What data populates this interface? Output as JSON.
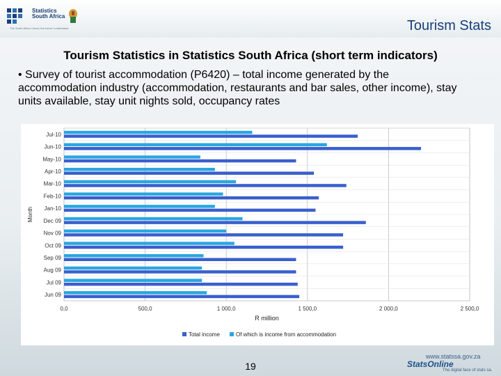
{
  "header": {
    "org_name_line1": "Statistics",
    "org_name_line2": "South Africa",
    "org_tagline": "The South Africa I know, the home I understand",
    "title": "Tourism Stats"
  },
  "slide": {
    "title": "Tourism Statistics in Statistics South Africa (short term indicators)",
    "bullet": "• Survey of tourist accommodation (P6420) – total income generated by the accommodation industry (accommodation, restaurants and bar sales, other income), stay units available, stay unit nights sold, occupancy rates"
  },
  "footer": {
    "page_number": "19",
    "url": "www.statssa.gov.za",
    "brand": "StatsOnline",
    "brand_tagline": "The digital face of stats sa."
  },
  "colors": {
    "total_income": "#3a5fcd",
    "accommodation_income": "#2aa7e0",
    "header_title": "#173e7a"
  },
  "chart_data": {
    "type": "bar",
    "orientation": "horizontal",
    "categories": [
      "Jul-10",
      "Jun-10",
      "May-10",
      "Apr-10",
      "Mar-10",
      "Feb-10",
      "Jan-10",
      "Dec 09",
      "Nov 09",
      "Oct 09",
      "Sep 09",
      "Aug 09",
      "Jul 09",
      "Jun 09"
    ],
    "series": [
      {
        "name": "Total income",
        "values": [
          1810,
          2200,
          1430,
          1540,
          1740,
          1570,
          1550,
          1860,
          1720,
          1720,
          1430,
          1430,
          1440,
          1450
        ]
      },
      {
        "name": "Of which is income from accommodation",
        "values": [
          1160,
          1620,
          840,
          930,
          1060,
          980,
          930,
          1100,
          1000,
          1050,
          860,
          850,
          850,
          880
        ]
      }
    ],
    "xlabel": "R million",
    "ylabel": "Month",
    "xlim": [
      0,
      2500
    ],
    "xticks": [
      0,
      500,
      1000,
      1500,
      2000,
      2500
    ],
    "xtick_labels": [
      "0,0",
      "500,0",
      "1 000,0",
      "1 500,0",
      "2 000,0",
      "2 500,0"
    ],
    "grid": true,
    "legend": "bottom"
  }
}
